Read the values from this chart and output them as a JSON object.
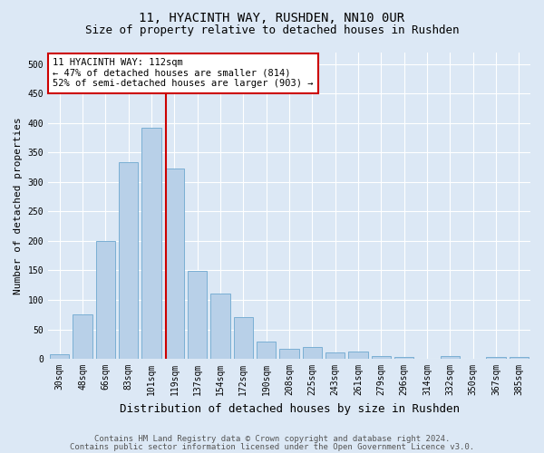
{
  "title": "11, HYACINTH WAY, RUSHDEN, NN10 0UR",
  "subtitle": "Size of property relative to detached houses in Rushden",
  "xlabel": "Distribution of detached houses by size in Rushden",
  "ylabel": "Number of detached properties",
  "bar_labels": [
    "30sqm",
    "48sqm",
    "66sqm",
    "83sqm",
    "101sqm",
    "119sqm",
    "137sqm",
    "154sqm",
    "172sqm",
    "190sqm",
    "208sqm",
    "225sqm",
    "243sqm",
    "261sqm",
    "279sqm",
    "296sqm",
    "314sqm",
    "332sqm",
    "350sqm",
    "367sqm",
    "385sqm"
  ],
  "bar_values": [
    8,
    75,
    199,
    334,
    392,
    323,
    149,
    110,
    71,
    30,
    17,
    20,
    11,
    13,
    5,
    3,
    0,
    4,
    0,
    3,
    3
  ],
  "bar_color": "#b8d0e8",
  "bar_edge_color": "#7aafd4",
  "vline_color": "#cc0000",
  "annotation_text": "11 HYACINTH WAY: 112sqm\n← 47% of detached houses are smaller (814)\n52% of semi-detached houses are larger (903) →",
  "annotation_box_color": "#ffffff",
  "annotation_box_edge": "#cc0000",
  "ylim": [
    0,
    520
  ],
  "yticks": [
    0,
    50,
    100,
    150,
    200,
    250,
    300,
    350,
    400,
    450,
    500
  ],
  "background_color": "#dce8f5",
  "plot_bg_color": "#dce8f5",
  "footer_line1": "Contains HM Land Registry data © Crown copyright and database right 2024.",
  "footer_line2": "Contains public sector information licensed under the Open Government Licence v3.0.",
  "title_fontsize": 10,
  "subtitle_fontsize": 9,
  "xlabel_fontsize": 9,
  "ylabel_fontsize": 8,
  "tick_fontsize": 7,
  "annotation_fontsize": 7.5,
  "footer_fontsize": 6.5
}
